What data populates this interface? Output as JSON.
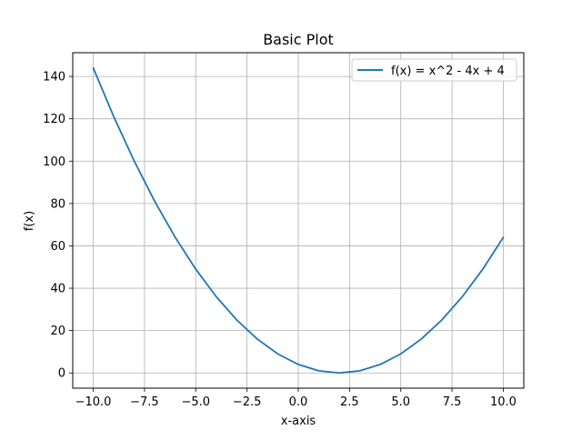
{
  "chart_data": {
    "type": "line",
    "title": "Basic Plot",
    "xlabel": "x-axis",
    "ylabel": "f(x)",
    "xlim": [
      -11.0,
      11.0
    ],
    "ylim": [
      -7.2,
      151.2
    ],
    "xticks": [
      -10.0,
      -7.5,
      -5.0,
      -2.5,
      0.0,
      2.5,
      5.0,
      7.5,
      10.0
    ],
    "xtick_labels": [
      "−10.0",
      "−7.5",
      "−5.0",
      "−2.5",
      "0.0",
      "2.5",
      "5.0",
      "7.5",
      "10.0"
    ],
    "yticks": [
      0,
      20,
      40,
      60,
      80,
      100,
      120,
      140
    ],
    "ytick_labels": [
      "0",
      "20",
      "40",
      "60",
      "80",
      "100",
      "120",
      "140"
    ],
    "grid": true,
    "legend": {
      "location": "upper right",
      "entries": [
        "f(x) = x^2 - 4x + 4"
      ]
    },
    "series": [
      {
        "name": "f(x) = x^2 - 4x + 4",
        "color": "#1f77b4",
        "x": [
          -10,
          -9,
          -8,
          -7,
          -6,
          -5,
          -4,
          -3,
          -2,
          -1,
          0,
          1,
          2,
          3,
          4,
          5,
          6,
          7,
          8,
          9,
          10
        ],
        "y": [
          144,
          121,
          100,
          81,
          64,
          49,
          36,
          25,
          16,
          9,
          4,
          1,
          0,
          1,
          4,
          9,
          16,
          25,
          36,
          49,
          64
        ]
      }
    ]
  }
}
